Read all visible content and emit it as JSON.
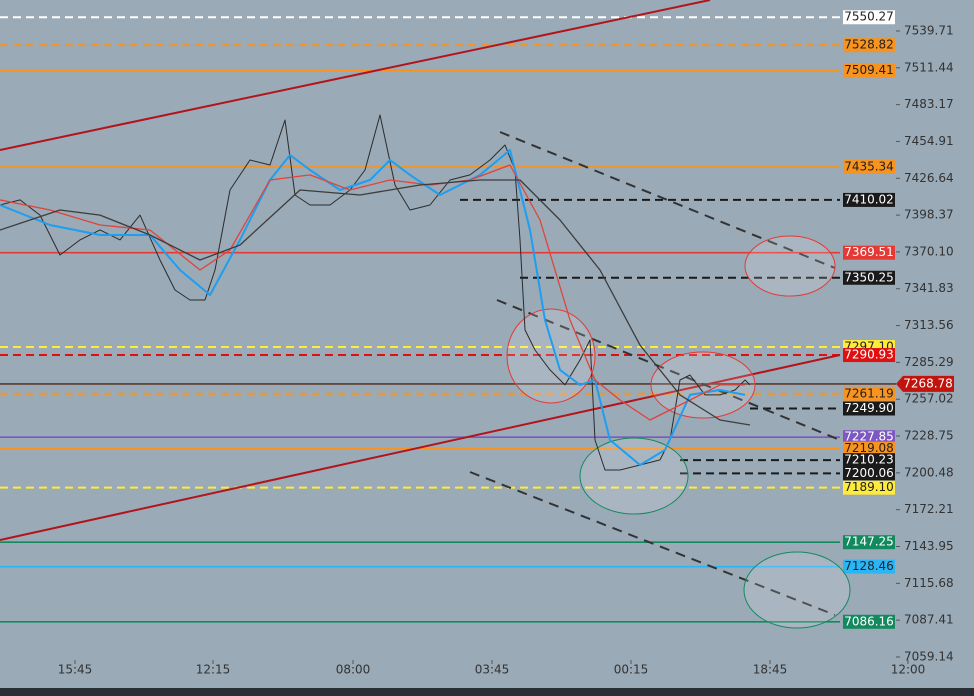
{
  "chart_data": {
    "type": "line",
    "ylim": [
      7047.6,
      7563.5
    ],
    "yticks": [
      7539.71,
      7511.44,
      7483.17,
      7454.91,
      7426.64,
      7398.37,
      {
        "value": 7370.1,
        "label": "7370.10"
      },
      7341.83,
      7313.56,
      7285.29,
      7257.02,
      7228.75,
      7200.48,
      7172.21,
      7143.95,
      7115.68,
      7087.41,
      7059.14
    ],
    "xlim": [
      0,
      974
    ],
    "xticks": [
      {
        "value": 75,
        "label": "15:45"
      },
      {
        "value": 213,
        "label": "12:15"
      },
      {
        "value": 353,
        "label": "08:00"
      },
      {
        "value": 492,
        "label": "03:45"
      },
      {
        "value": 631,
        "label": "00:15"
      },
      {
        "value": 770,
        "label": "18:45"
      },
      {
        "value": 908,
        "label": "12:00"
      }
    ],
    "series": [
      {
        "color": "#2b2b2b",
        "width": 1,
        "x": [
          0,
          20,
          40,
          60,
          80,
          100,
          120,
          140,
          160,
          175,
          190,
          205,
          215,
          230,
          250,
          270,
          285,
          295,
          310,
          330,
          350,
          365,
          380,
          395,
          410,
          430,
          450,
          470,
          490,
          505,
          515,
          520,
          525,
          535,
          550,
          565,
          580,
          590,
          595,
          605,
          620,
          640,
          660,
          670,
          680,
          690,
          705,
          720,
          735,
          745,
          750
        ],
        "values": [
          7406.1,
          7410,
          7398.4,
          7367.7,
          7379.3,
          7387,
          7379.3,
          7398.4,
          7363.9,
          7340.9,
          7333.2,
          7333.2,
          7356.2,
          7417.6,
          7440.7,
          7436.8,
          7471.4,
          7413.8,
          7406.1,
          7406.1,
          7417.6,
          7433,
          7475.2,
          7421.5,
          7402.3,
          7406.1,
          7425.3,
          7429.2,
          7440.7,
          7452.2,
          7433,
          7379.3,
          7310.2,
          7294.8,
          7279.5,
          7268,
          7287.1,
          7302.5,
          7225.7,
          7202.7,
          7202.7,
          7206.5,
          7210.4,
          7225.7,
          7271.8,
          7275.6,
          7260.3,
          7260.3,
          7264.1,
          7271.8,
          7268
        ]
      },
      {
        "color": "#1e9ef0",
        "width": 2,
        "x": [
          0,
          50,
          100,
          150,
          180,
          210,
          240,
          270,
          290,
          310,
          340,
          370,
          390,
          410,
          440,
          480,
          510,
          530,
          545,
          560,
          580,
          595,
          610,
          640,
          665,
          690,
          720,
          745
        ],
        "values": [
          7406.1,
          7390.8,
          7383.1,
          7383.1,
          7356.2,
          7337,
          7379.3,
          7425.3,
          7444.5,
          7433,
          7417.6,
          7425.3,
          7440.7,
          7429.2,
          7413.8,
          7429.2,
          7448.3,
          7386.9,
          7317.8,
          7279.5,
          7268,
          7271.8,
          7225.7,
          7206.5,
          7218,
          7260.3,
          7264.1,
          7260.3
        ]
      },
      {
        "color": "#e0443a",
        "width": 1.3,
        "x": [
          0,
          50,
          100,
          150,
          200,
          230,
          270,
          310,
          350,
          390,
          430,
          470,
          510,
          540,
          570,
          595,
          620,
          650,
          690,
          720,
          745
        ],
        "values": [
          7410,
          7402.3,
          7390.8,
          7386.9,
          7356.2,
          7371.6,
          7425.3,
          7429.2,
          7417.6,
          7425.3,
          7421.5,
          7425.3,
          7436.8,
          7394.6,
          7317.8,
          7271.8,
          7256.4,
          7241.1,
          7256.4,
          7268,
          7268
        ]
      },
      {
        "color": "#3c3c3c",
        "width": 1.3,
        "x": [
          0,
          60,
          100,
          150,
          200,
          240,
          300,
          360,
          420,
          480,
          520,
          560,
          600,
          640,
          680,
          720,
          750
        ],
        "values": [
          7386.9,
          7402.3,
          7398.4,
          7383.1,
          7363.9,
          7375.4,
          7417.6,
          7413.8,
          7421.5,
          7425.3,
          7425.3,
          7394.6,
          7356.2,
          7298.6,
          7260.3,
          7241.1,
          7237.2
        ]
      }
    ],
    "levels": [
      {
        "value": 7550.27,
        "color": "#ffffff",
        "dash": true
      },
      {
        "value": 7528.82,
        "color": "#f7931e",
        "dash": true
      },
      {
        "value": 7509.41,
        "color": "#f7931e",
        "dash": false
      },
      {
        "value": 7435.34,
        "color": "#f7931e",
        "dash": false
      },
      {
        "value": 7410.02,
        "color": "#1a1a1a",
        "dash": true,
        "start": 460
      },
      {
        "value": 7369.51,
        "color": "#e53935",
        "dash": false
      },
      {
        "value": 7350.25,
        "color": "#1a1a1a",
        "dash": true,
        "start": 520
      },
      {
        "value": 7297.1,
        "value_label": "7297.10",
        "color": "#ffeb3b",
        "dash": true
      },
      {
        "value": 7290.93,
        "color": "#e01010",
        "dash": true
      },
      {
        "value": 7268.78,
        "color": "#5a3a2a",
        "dash": false,
        "tag_color": "#c0140c"
      },
      {
        "value": 7261.19,
        "color": "#f7931e",
        "dash": true
      },
      {
        "value": 7249.9,
        "value_label": "7249.90",
        "color": "#1a1a1a",
        "dash": true,
        "start": 750
      },
      {
        "value": 7227.85,
        "color": "#7e57c2",
        "dash": false
      },
      {
        "value": 7219.08,
        "color": "#f7931e",
        "dash": false
      },
      {
        "value": 7210.23,
        "color": "#1a1a1a",
        "dash": true,
        "start": 680
      },
      {
        "value": 7200.06,
        "color": "#1a1a1a",
        "dash": true,
        "start": 680
      },
      {
        "value": 7189.1,
        "value_label": "7189.10",
        "color": "#ffeb3b",
        "dash": true
      },
      {
        "value": 7147.25,
        "color": "#138a5e",
        "dash": false
      },
      {
        "value": 7128.46,
        "color": "#29b6f6",
        "dash": false
      },
      {
        "value": 7086.16,
        "color": "#138a5e",
        "dash": false
      }
    ]
  }
}
